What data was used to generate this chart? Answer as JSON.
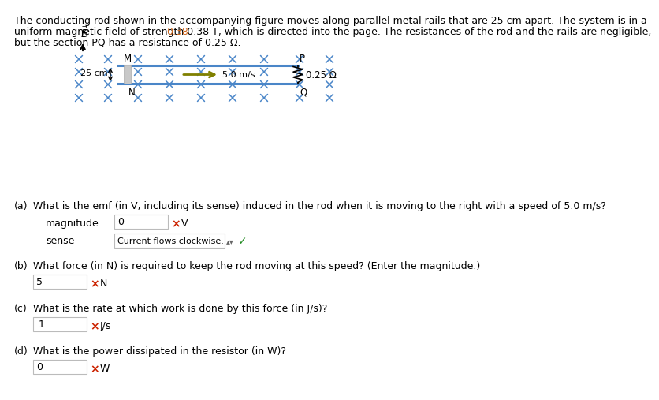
{
  "bg_color": "#ffffff",
  "text_color": "#000000",
  "highlight_color": "#d2691e",
  "blue_color": "#4a86c8",
  "red_color": "#cc2200",
  "green_color": "#228B22",
  "line1": "The conducting rod shown in the accompanying figure moves along parallel metal rails that are 25 cm apart. The system is in a",
  "line2_pre": "uniform magnetic field of strength ",
  "line2_highlight": "0.38",
  "line2_post": " T, which is directed into the page. The resistances of the rod and the rails are negligible,",
  "line3": "but the section PQ has a resistance of 0.25 Ω.",
  "q_a_text": "What is the emf (in V, including its sense) induced in the rod when it is moving to the right with a speed of 5.0 m/s?",
  "q_b_text": "What force (in N) is required to keep the rod moving at this speed? (Enter the magnitude.)",
  "q_c_text": "What is the rate at which work is done by this force (in J/s)?",
  "q_d_text": "What is the power dissipated in the resistor (in W)?",
  "val_a": "0",
  "unit_a": "V",
  "sense_text": "Current flows clockwise.",
  "val_b": "5",
  "unit_b": "N",
  "val_c": ".1",
  "unit_c": "J/s",
  "val_d": "0",
  "unit_d": "W"
}
